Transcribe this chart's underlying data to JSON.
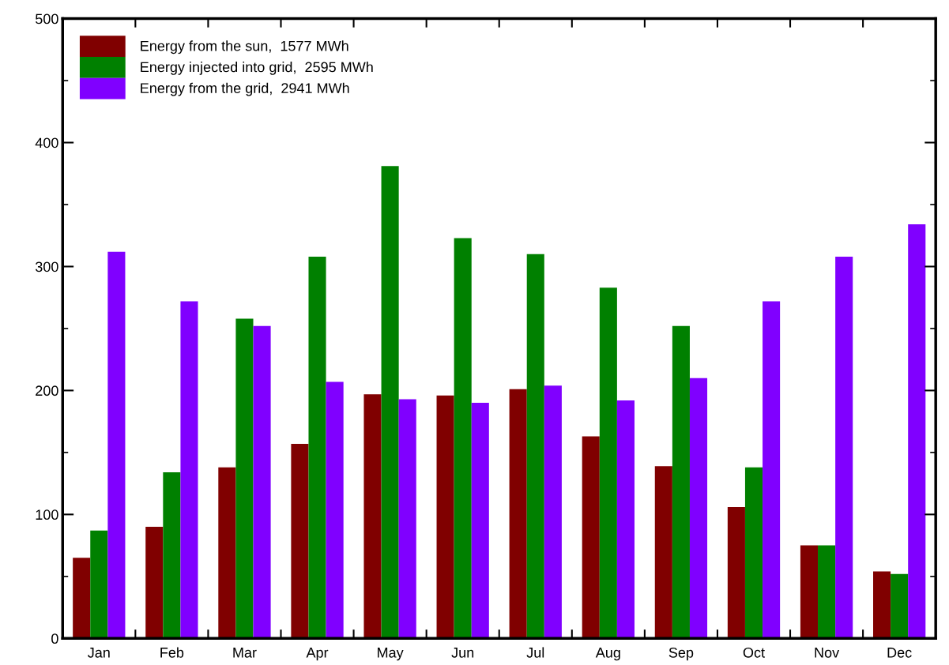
{
  "chart_data": {
    "type": "bar",
    "categories": [
      "Jan",
      "Feb",
      "Mar",
      "Apr",
      "May",
      "Jun",
      "Jul",
      "Aug",
      "Sep",
      "Oct",
      "Nov",
      "Dec"
    ],
    "series": [
      {
        "name": "Energy from the sun,  1577 MWh",
        "color": "#800000",
        "values": [
          65,
          90,
          138,
          157,
          197,
          196,
          201,
          163,
          139,
          106,
          75,
          54
        ]
      },
      {
        "name": "Energy injected into grid,  2595 MWh",
        "color": "#008000",
        "values": [
          87,
          134,
          258,
          308,
          381,
          323,
          310,
          283,
          252,
          138,
          75,
          52
        ]
      },
      {
        "name": "Energy from the grid,  2941 MWh",
        "color": "#8000ff",
        "values": [
          312,
          272,
          252,
          207,
          193,
          190,
          204,
          192,
          210,
          272,
          308,
          334
        ]
      }
    ],
    "ylim": [
      0,
      500
    ],
    "yticks": [
      0,
      {
        "value": 50,
        "label": null
      },
      100,
      {
        "value": 150,
        "label": null
      },
      200,
      {
        "value": 250,
        "label": null
      },
      300,
      {
        "value": 350,
        "label": null
      },
      400,
      {
        "value": 450,
        "label": null
      },
      500
    ],
    "legend": "top left",
    "grid": false
  }
}
